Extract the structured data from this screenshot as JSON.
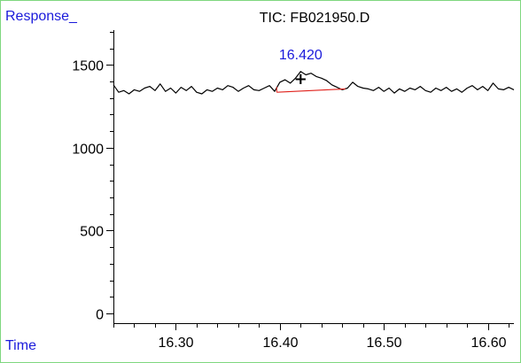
{
  "chart_data": {
    "type": "line",
    "title": "TIC: FB021950.D",
    "ylabel": "Response_",
    "xlabel": "Time",
    "xlim": [
      16.24,
      16.625
    ],
    "ylim": [
      0,
      1710
    ],
    "x_ticks": [
      16.3,
      16.4,
      16.5,
      16.6
    ],
    "x_tick_labels": [
      "16.30",
      "16.40",
      "16.50",
      "16.60"
    ],
    "y_ticks": [
      0,
      500,
      1000,
      1500
    ],
    "y_tick_labels": [
      "0",
      "500",
      "1000",
      "1500"
    ],
    "series": [
      {
        "color": "#000000",
        "x": [
          16.24,
          16.245,
          16.25,
          16.255,
          16.26,
          16.265,
          16.27,
          16.275,
          16.28,
          16.285,
          16.29,
          16.295,
          16.3,
          16.305,
          16.31,
          16.315,
          16.32,
          16.325,
          16.33,
          16.335,
          16.34,
          16.345,
          16.35,
          16.355,
          16.36,
          16.365,
          16.37,
          16.375,
          16.38,
          16.385,
          16.39,
          16.395,
          16.4,
          16.405,
          16.41,
          16.415,
          16.42,
          16.425,
          16.43,
          16.435,
          16.44,
          16.445,
          16.45,
          16.455,
          16.46,
          16.465,
          16.47,
          16.475,
          16.48,
          16.485,
          16.49,
          16.495,
          16.5,
          16.505,
          16.51,
          16.515,
          16.52,
          16.525,
          16.53,
          16.535,
          16.54,
          16.545,
          16.55,
          16.555,
          16.56,
          16.565,
          16.57,
          16.575,
          16.58,
          16.585,
          16.59,
          16.595,
          16.6,
          16.605,
          16.61,
          16.615,
          16.62,
          16.625
        ],
        "y": [
          1380,
          1335,
          1345,
          1325,
          1350,
          1340,
          1360,
          1370,
          1345,
          1385,
          1340,
          1360,
          1330,
          1365,
          1345,
          1370,
          1335,
          1325,
          1350,
          1340,
          1360,
          1350,
          1375,
          1365,
          1340,
          1360,
          1375,
          1350,
          1345,
          1360,
          1375,
          1340,
          1395,
          1410,
          1390,
          1420,
          1460,
          1440,
          1450,
          1430,
          1420,
          1405,
          1380,
          1365,
          1350,
          1360,
          1395,
          1370,
          1360,
          1355,
          1345,
          1365,
          1340,
          1360,
          1330,
          1355,
          1340,
          1360,
          1350,
          1370,
          1345,
          1335,
          1360,
          1345,
          1365,
          1340,
          1355,
          1335,
          1360,
          1375,
          1350,
          1370,
          1345,
          1390,
          1355,
          1350,
          1365,
          1350
        ]
      }
    ],
    "annotations": [
      {
        "label": "16.420",
        "x": 16.42,
        "y": 1460,
        "color": "#1a1adb"
      }
    ],
    "integration_baseline": {
      "color": "#e0201a",
      "x": [
        16.397,
        16.463
      ],
      "y": [
        1335,
        1355
      ]
    },
    "marker": {
      "x": 16.42,
      "y": 1415,
      "symbol": "+"
    },
    "grid": false,
    "legend": "none"
  }
}
